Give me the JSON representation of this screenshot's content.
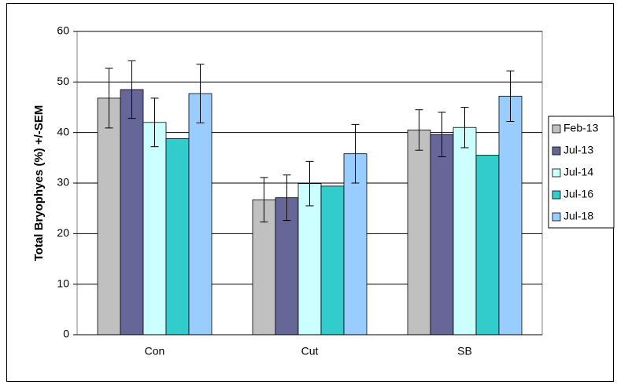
{
  "chart_data": {
    "type": "bar",
    "ylabel": "Total Bryophyes (%) +/-SEM",
    "categories": [
      "Con",
      "Cut",
      "SB"
    ],
    "series": [
      {
        "name": "Feb-13",
        "color": "#c0c0c0",
        "values": [
          46.8,
          26.7,
          40.5
        ],
        "errors": [
          5.9,
          4.4,
          4.0
        ]
      },
      {
        "name": "Jul-13",
        "color": "#666699",
        "values": [
          48.5,
          27.1,
          39.6
        ],
        "errors": [
          5.7,
          4.5,
          4.4
        ]
      },
      {
        "name": "Jul-14",
        "color": "#ccffff",
        "values": [
          42.0,
          29.9,
          41.0
        ],
        "errors": [
          4.8,
          4.4,
          4.0
        ]
      },
      {
        "name": "Jul-16",
        "color": "#33cccc",
        "values": [
          38.8,
          29.4,
          35.5
        ]
      },
      {
        "name": "Jul-18",
        "color": "#99ccff",
        "values": [
          47.7,
          35.8,
          47.2
        ],
        "errors": [
          5.8,
          5.8,
          5.0
        ]
      }
    ],
    "ylim": [
      0,
      60
    ],
    "yticks": [
      0,
      10,
      20,
      30,
      40,
      50,
      60
    ],
    "grid": true,
    "legend": "right"
  }
}
